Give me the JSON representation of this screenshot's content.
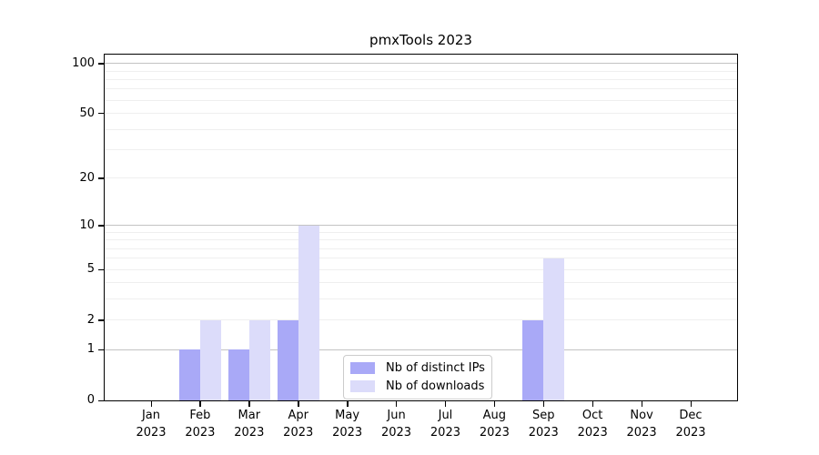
{
  "chart_data": {
    "type": "bar",
    "title": "pmxTools 2023",
    "xlabel": "",
    "ylabel": "",
    "x_categories": [
      "Jan",
      "Feb",
      "Mar",
      "Apr",
      "May",
      "Jun",
      "Jul",
      "Aug",
      "Sep",
      "Oct",
      "Nov",
      "Dec"
    ],
    "x_year_label": "2023",
    "series": [
      {
        "name": "Nb of distinct IPs",
        "color": "#a9a9f7",
        "values": [
          0,
          1,
          1,
          2,
          0,
          0,
          0,
          0,
          2,
          0,
          0,
          0
        ]
      },
      {
        "name": "Nb of downloads",
        "color": "#dcdcfa",
        "values": [
          0,
          2,
          2,
          10,
          0,
          0,
          0,
          0,
          6,
          0,
          0,
          0
        ]
      }
    ],
    "y_axis": {
      "scale": "log1p",
      "ticks": [
        0,
        1,
        2,
        5,
        10,
        20,
        50,
        100
      ],
      "max": 113,
      "major_gridlines": [
        1,
        10,
        100
      ],
      "minor_gridlines": [
        2,
        3,
        4,
        5,
        6,
        7,
        8,
        9,
        20,
        30,
        40,
        50,
        60,
        70,
        80,
        90
      ]
    },
    "legend": {
      "position": "lower-center-inside"
    },
    "colors": {
      "major_grid": "#c3c3c3",
      "minor_grid": "#efefef",
      "spine": "#000000",
      "text": "#000000",
      "background": "#ffffff"
    }
  }
}
